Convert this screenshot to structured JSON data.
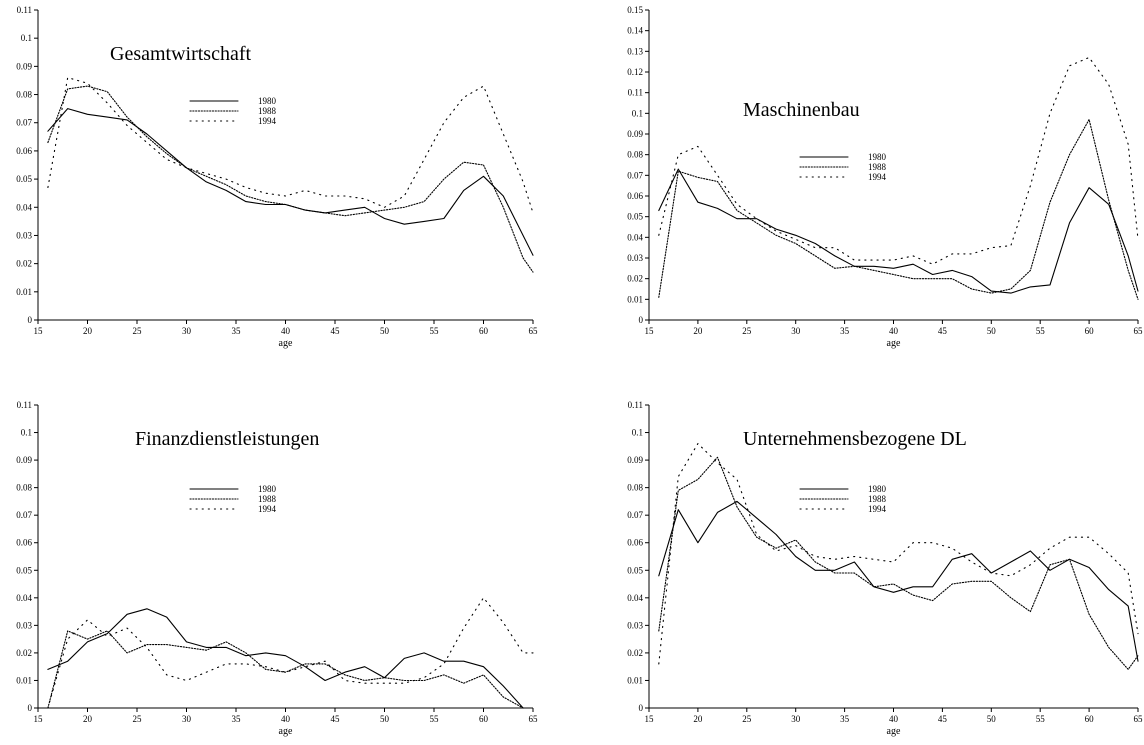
{
  "chart_data": [
    {
      "type": "line",
      "title": "Gesamtwirtschaft",
      "xlabel": "age",
      "ylabel": "",
      "xlim": [
        15,
        65
      ],
      "ylim": [
        0,
        0.11
      ],
      "x_ticks": [
        15,
        20,
        25,
        30,
        35,
        40,
        45,
        50,
        55,
        60,
        65
      ],
      "y_ticks": [
        0,
        0.01,
        0.02,
        0.03,
        0.04,
        0.05,
        0.06,
        0.07,
        0.08,
        0.09,
        0.1,
        0.11
      ],
      "grid": false,
      "legend_position": "upper-center",
      "series": [
        {
          "name": "1980",
          "line_style": "solid",
          "x": [
            16,
            18,
            20,
            22,
            24,
            26,
            28,
            30,
            32,
            34,
            36,
            38,
            40,
            42,
            44,
            46,
            48,
            50,
            52,
            54,
            56,
            58,
            60,
            62,
            65
          ],
          "y": [
            0.067,
            0.075,
            0.073,
            0.072,
            0.071,
            0.066,
            0.06,
            0.054,
            0.049,
            0.046,
            0.042,
            0.041,
            0.041,
            0.039,
            0.038,
            0.039,
            0.04,
            0.036,
            0.034,
            0.035,
            0.036,
            0.046,
            0.051,
            0.044,
            0.023
          ]
        },
        {
          "name": "1988",
          "line_style": "dense-dotted",
          "x": [
            16,
            18,
            20,
            22,
            24,
            26,
            28,
            30,
            32,
            34,
            36,
            38,
            40,
            42,
            44,
            46,
            48,
            50,
            52,
            54,
            56,
            58,
            60,
            62,
            64,
            65
          ],
          "y": [
            0.063,
            0.082,
            0.083,
            0.081,
            0.072,
            0.065,
            0.059,
            0.054,
            0.051,
            0.048,
            0.044,
            0.042,
            0.041,
            0.039,
            0.038,
            0.037,
            0.038,
            0.039,
            0.04,
            0.042,
            0.05,
            0.056,
            0.055,
            0.04,
            0.022,
            0.017
          ]
        },
        {
          "name": "1994",
          "line_style": "sparse-dotted",
          "x": [
            16,
            18,
            20,
            22,
            24,
            26,
            28,
            30,
            32,
            34,
            36,
            38,
            40,
            42,
            44,
            46,
            48,
            50,
            52,
            54,
            56,
            58,
            60,
            62,
            64,
            65
          ],
          "y": [
            0.047,
            0.086,
            0.084,
            0.077,
            0.069,
            0.063,
            0.057,
            0.054,
            0.052,
            0.05,
            0.047,
            0.045,
            0.044,
            0.046,
            0.044,
            0.044,
            0.043,
            0.04,
            0.044,
            0.057,
            0.07,
            0.079,
            0.083,
            0.066,
            0.049,
            0.038
          ]
        }
      ]
    },
    {
      "type": "line",
      "title": "Maschinenbau",
      "xlabel": "age",
      "ylabel": "",
      "xlim": [
        15,
        65
      ],
      "ylim": [
        0,
        0.15
      ],
      "x_ticks": [
        15,
        20,
        25,
        30,
        35,
        40,
        45,
        50,
        55,
        60,
        65
      ],
      "y_ticks": [
        0,
        0.01,
        0.02,
        0.03,
        0.04,
        0.05,
        0.06,
        0.07,
        0.08,
        0.09,
        0.1,
        0.11,
        0.12,
        0.13,
        0.14,
        0.15
      ],
      "grid": false,
      "legend_position": "center",
      "series": [
        {
          "name": "1980",
          "line_style": "solid",
          "x": [
            16,
            18,
            20,
            22,
            24,
            26,
            28,
            30,
            32,
            34,
            36,
            38,
            40,
            42,
            44,
            46,
            48,
            50,
            52,
            54,
            56,
            58,
            60,
            62,
            64,
            65
          ],
          "y": [
            0.053,
            0.073,
            0.057,
            0.054,
            0.049,
            0.049,
            0.044,
            0.041,
            0.037,
            0.031,
            0.026,
            0.026,
            0.025,
            0.027,
            0.022,
            0.024,
            0.021,
            0.014,
            0.013,
            0.016,
            0.017,
            0.047,
            0.064,
            0.056,
            0.031,
            0.014
          ]
        },
        {
          "name": "1988",
          "line_style": "dense-dotted",
          "x": [
            16,
            18,
            20,
            22,
            24,
            26,
            28,
            30,
            32,
            34,
            36,
            38,
            40,
            42,
            44,
            46,
            48,
            50,
            52,
            54,
            56,
            58,
            60,
            62,
            64,
            65
          ],
          "y": [
            0.011,
            0.072,
            0.069,
            0.067,
            0.053,
            0.047,
            0.041,
            0.037,
            0.031,
            0.025,
            0.026,
            0.024,
            0.022,
            0.02,
            0.02,
            0.02,
            0.015,
            0.013,
            0.015,
            0.024,
            0.057,
            0.08,
            0.097,
            0.058,
            0.024,
            0.01
          ]
        },
        {
          "name": "1994",
          "line_style": "sparse-dotted",
          "x": [
            16,
            18,
            20,
            22,
            24,
            26,
            28,
            30,
            32,
            34,
            36,
            38,
            40,
            42,
            44,
            46,
            48,
            50,
            52,
            54,
            56,
            58,
            60,
            62,
            64,
            65
          ],
          "y": [
            0.041,
            0.08,
            0.084,
            0.07,
            0.056,
            0.049,
            0.043,
            0.039,
            0.035,
            0.035,
            0.029,
            0.029,
            0.029,
            0.031,
            0.027,
            0.032,
            0.032,
            0.035,
            0.036,
            0.065,
            0.1,
            0.123,
            0.127,
            0.114,
            0.085,
            0.039
          ]
        }
      ]
    },
    {
      "type": "line",
      "title": "Finanzdienstleistungen",
      "xlabel": "age",
      "ylabel": "",
      "xlim": [
        15,
        65
      ],
      "ylim": [
        0,
        0.11
      ],
      "x_ticks": [
        15,
        20,
        25,
        30,
        35,
        40,
        45,
        50,
        55,
        60,
        65
      ],
      "y_ticks": [
        0,
        0.01,
        0.02,
        0.03,
        0.04,
        0.05,
        0.06,
        0.07,
        0.08,
        0.09,
        0.1,
        0.11
      ],
      "grid": false,
      "legend_position": "upper-center",
      "series": [
        {
          "name": "1980",
          "line_style": "solid",
          "x": [
            16,
            18,
            20,
            22,
            24,
            26,
            28,
            30,
            32,
            34,
            36,
            38,
            40,
            42,
            44,
            46,
            48,
            50,
            52,
            54,
            56,
            58,
            60,
            62,
            64
          ],
          "y": [
            0.014,
            0.017,
            0.024,
            0.027,
            0.034,
            0.036,
            0.033,
            0.024,
            0.022,
            0.022,
            0.019,
            0.02,
            0.019,
            0.015,
            0.01,
            0.013,
            0.015,
            0.011,
            0.018,
            0.02,
            0.017,
            0.017,
            0.015,
            0.008,
            0.0
          ]
        },
        {
          "name": "1988",
          "line_style": "dense-dotted",
          "x": [
            16,
            18,
            20,
            22,
            24,
            26,
            28,
            30,
            32,
            34,
            36,
            38,
            40,
            42,
            44,
            46,
            48,
            50,
            52,
            54,
            56,
            58,
            60,
            62,
            64
          ],
          "y": [
            0.0,
            0.028,
            0.025,
            0.028,
            0.02,
            0.023,
            0.023,
            0.022,
            0.021,
            0.024,
            0.02,
            0.014,
            0.013,
            0.016,
            0.016,
            0.012,
            0.01,
            0.011,
            0.01,
            0.01,
            0.012,
            0.009,
            0.012,
            0.004,
            0.0
          ]
        },
        {
          "name": "1994",
          "line_style": "sparse-dotted",
          "x": [
            16,
            18,
            20,
            22,
            24,
            26,
            28,
            30,
            32,
            34,
            36,
            38,
            40,
            42,
            44,
            46,
            48,
            50,
            52,
            54,
            56,
            58,
            60,
            62,
            64,
            65
          ],
          "y": [
            0.0,
            0.025,
            0.032,
            0.026,
            0.029,
            0.022,
            0.012,
            0.01,
            0.013,
            0.016,
            0.016,
            0.015,
            0.013,
            0.015,
            0.017,
            0.01,
            0.009,
            0.009,
            0.009,
            0.011,
            0.016,
            0.029,
            0.04,
            0.031,
            0.02,
            0.02
          ]
        }
      ]
    },
    {
      "type": "line",
      "title": "Unternehmensbezogene DL",
      "xlabel": "age",
      "ylabel": "",
      "xlim": [
        15,
        65
      ],
      "ylim": [
        0,
        0.11
      ],
      "x_ticks": [
        15,
        20,
        25,
        30,
        35,
        40,
        45,
        50,
        55,
        60,
        65
      ],
      "y_ticks": [
        0,
        0.01,
        0.02,
        0.03,
        0.04,
        0.05,
        0.06,
        0.07,
        0.08,
        0.09,
        0.1,
        0.11
      ],
      "grid": false,
      "legend_position": "upper-center",
      "series": [
        {
          "name": "1980",
          "line_style": "solid",
          "x": [
            16,
            18,
            20,
            22,
            24,
            26,
            28,
            30,
            32,
            34,
            36,
            38,
            40,
            42,
            44,
            46,
            48,
            50,
            52,
            54,
            56,
            58,
            60,
            62,
            64,
            65
          ],
          "y": [
            0.048,
            0.072,
            0.06,
            0.071,
            0.075,
            0.069,
            0.063,
            0.055,
            0.05,
            0.05,
            0.053,
            0.044,
            0.042,
            0.044,
            0.044,
            0.054,
            0.056,
            0.049,
            0.053,
            0.057,
            0.05,
            0.054,
            0.051,
            0.043,
            0.037,
            0.017
          ]
        },
        {
          "name": "1988",
          "line_style": "dense-dotted",
          "x": [
            16,
            18,
            20,
            22,
            24,
            26,
            28,
            30,
            32,
            34,
            36,
            38,
            40,
            42,
            44,
            46,
            48,
            50,
            52,
            54,
            56,
            58,
            60,
            62,
            64,
            65
          ],
          "y": [
            0.028,
            0.079,
            0.083,
            0.091,
            0.073,
            0.062,
            0.058,
            0.061,
            0.053,
            0.049,
            0.049,
            0.044,
            0.045,
            0.041,
            0.039,
            0.045,
            0.046,
            0.046,
            0.04,
            0.035,
            0.052,
            0.054,
            0.034,
            0.022,
            0.014,
            0.019
          ]
        },
        {
          "name": "1994",
          "line_style": "sparse-dotted",
          "x": [
            16,
            18,
            20,
            22,
            24,
            26,
            28,
            30,
            32,
            34,
            36,
            38,
            40,
            42,
            44,
            46,
            48,
            50,
            52,
            54,
            56,
            58,
            60,
            62,
            64,
            65
          ],
          "y": [
            0.016,
            0.084,
            0.096,
            0.089,
            0.083,
            0.063,
            0.057,
            0.059,
            0.055,
            0.054,
            0.055,
            0.054,
            0.053,
            0.06,
            0.06,
            0.058,
            0.053,
            0.049,
            0.048,
            0.052,
            0.058,
            0.062,
            0.062,
            0.056,
            0.049,
            0.027
          ]
        }
      ]
    }
  ]
}
